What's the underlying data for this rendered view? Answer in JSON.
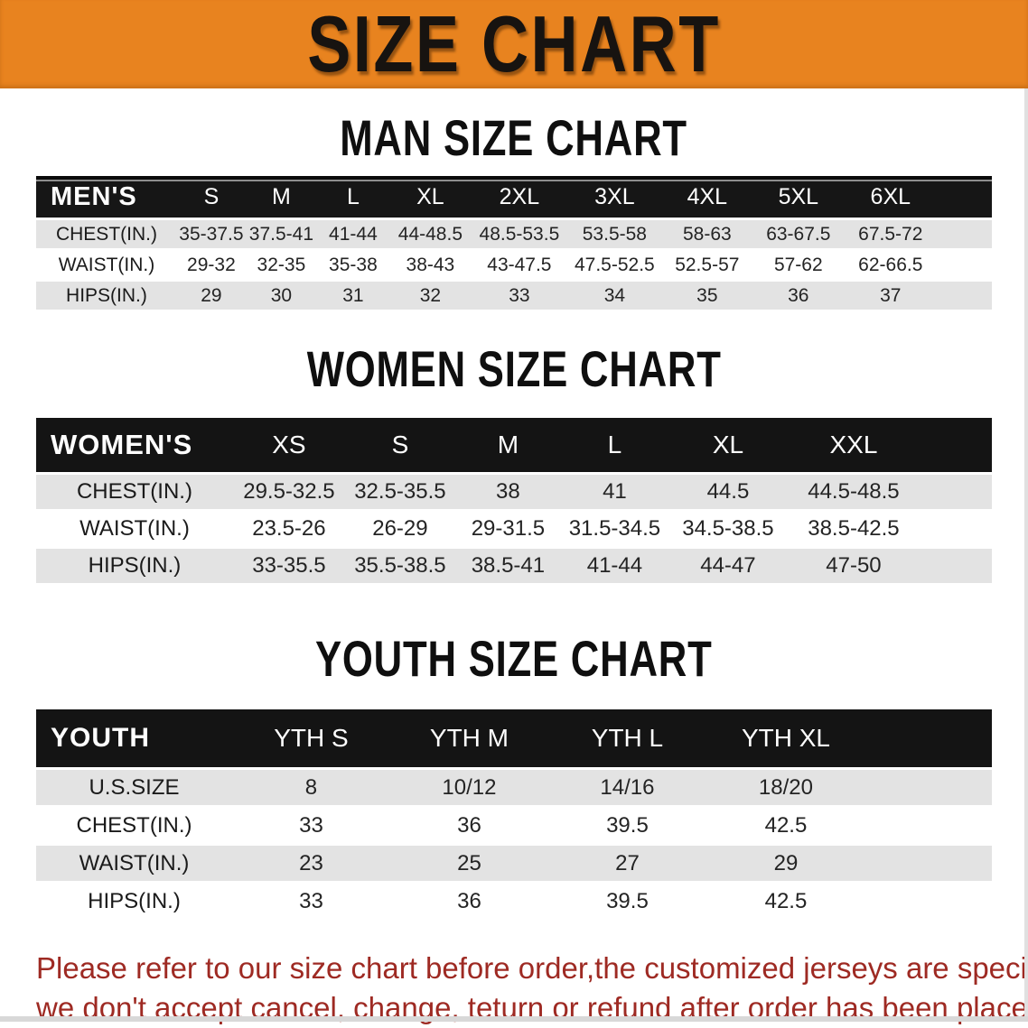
{
  "banner": {
    "title": "SIZE CHART",
    "bg_color": "#E8831F",
    "text_color": "#171310"
  },
  "sections": [
    {
      "heading": "MAN SIZE CHART",
      "table": {
        "header_label": "MEN'S",
        "columns": [
          "S",
          "M",
          "L",
          "XL",
          "2XL",
          "3XL",
          "4XL",
          "5XL",
          "6XL"
        ],
        "rows": [
          {
            "label": "CHEST(IN.)",
            "values": [
              "35-37.5",
              "37.5-41",
              "41-44",
              "44-48.5",
              "48.5-53.5",
              "53.5-58",
              "58-63",
              "63-67.5",
              "67.5-72"
            ]
          },
          {
            "label": "WAIST(IN.)",
            "values": [
              "29-32",
              "32-35",
              "35-38",
              "38-43",
              "43-47.5",
              "47.5-52.5",
              "52.5-57",
              "57-62",
              "62-66.5"
            ]
          },
          {
            "label": "HIPS(IN.)",
            "values": [
              "29",
              "30",
              "31",
              "32",
              "33",
              "34",
              "35",
              "36",
              "37"
            ]
          }
        ]
      }
    },
    {
      "heading": "WOMEN SIZE CHART",
      "table": {
        "header_label": "WOMEN'S",
        "columns": [
          "XS",
          "S",
          "M",
          "L",
          "XL",
          "XXL"
        ],
        "rows": [
          {
            "label": "CHEST(IN.)",
            "values": [
              "29.5-32.5",
              "32.5-35.5",
              "38",
              "41",
              "44.5",
              "44.5-48.5"
            ]
          },
          {
            "label": "WAIST(IN.)",
            "values": [
              "23.5-26",
              "26-29",
              "29-31.5",
              "31.5-34.5",
              "34.5-38.5",
              "38.5-42.5"
            ]
          },
          {
            "label": "HIPS(IN.)",
            "values": [
              "33-35.5",
              "35.5-38.5",
              "38.5-41",
              "41-44",
              "44-47",
              "47-50"
            ]
          }
        ]
      }
    },
    {
      "heading": "YOUTH SIZE CHART",
      "table": {
        "header_label": "YOUTH",
        "columns": [
          "YTH S",
          "YTH M",
          "YTH L",
          "YTH XL"
        ],
        "rows": [
          {
            "label": "U.S.SIZE",
            "values": [
              "8",
              "10/12",
              "14/16",
              "18/20"
            ]
          },
          {
            "label": "CHEST(IN.)",
            "values": [
              "33",
              "36",
              "39.5",
              "42.5"
            ]
          },
          {
            "label": "WAIST(IN.)",
            "values": [
              "23",
              "25",
              "27",
              "29"
            ]
          },
          {
            "label": "HIPS(IN.)",
            "values": [
              "33",
              "36",
              "39.5",
              "42.5"
            ]
          }
        ]
      }
    }
  ],
  "disclaimer": {
    "line1": "Please refer to our size chart before order,the customized jerseys are special products,",
    "line2": "we don't accept cancel, change, teturn or refund after order has been placed!",
    "color": "#9e2a23"
  }
}
